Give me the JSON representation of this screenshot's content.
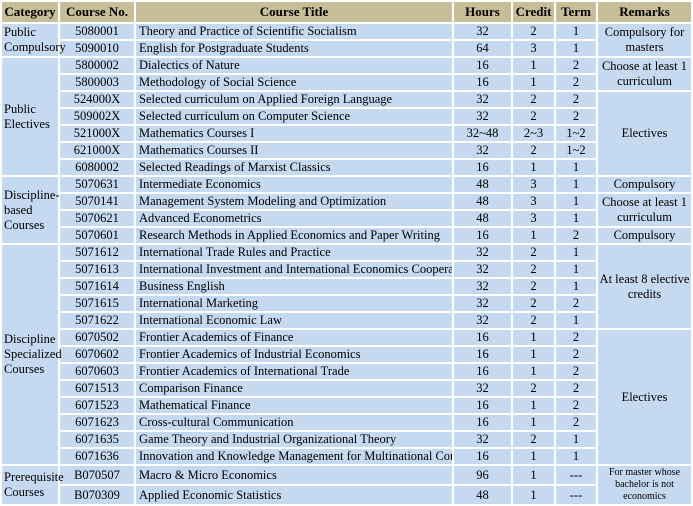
{
  "table": {
    "headers": [
      "Category",
      "Course No.",
      "Course Title",
      "Hours",
      "Credit",
      "Term",
      "Remarks"
    ],
    "rows": [
      {
        "no": "5080001",
        "title": "Theory and Practice of Scientific Socialism",
        "hours": "32",
        "credit": "2",
        "term": "1"
      },
      {
        "no": "5090010",
        "title": "English for Postgraduate Students",
        "hours": "64",
        "credit": "3",
        "term": "1"
      },
      {
        "no": "5800002",
        "title": "Dialectics of Nature",
        "hours": "16",
        "credit": "1",
        "term": "2"
      },
      {
        "no": "5800003",
        "title": "Methodology of Social Science",
        "hours": "16",
        "credit": "1",
        "term": "2"
      },
      {
        "no": "524000X",
        "title": "Selected curriculum on Applied Foreign Language",
        "hours": "32",
        "credit": "2",
        "term": "2"
      },
      {
        "no": "509002X",
        "title": "Selected curriculum on Computer Science",
        "hours": "32",
        "credit": "2",
        "term": "2"
      },
      {
        "no": "521000X",
        "title": "Mathematics Courses I",
        "hours": "32~48",
        "credit": "2~3",
        "term": "1~2"
      },
      {
        "no": "621000X",
        "title": "Mathematics Courses II",
        "hours": "32",
        "credit": "2",
        "term": "1~2"
      },
      {
        "no": "6080002",
        "title": "Selected Readings of Marxist Classics",
        "hours": "16",
        "credit": "1",
        "term": "1"
      },
      {
        "no": "5070631",
        "title": "Intermediate Economics",
        "hours": "48",
        "credit": "3",
        "term": "1"
      },
      {
        "no": "5070141",
        "title": "Management System Modeling and Optimization",
        "hours": "48",
        "credit": "3",
        "term": "1"
      },
      {
        "no": "5070621",
        "title": "Advanced Econometrics",
        "hours": "48",
        "credit": "3",
        "term": "1"
      },
      {
        "no": "5070601",
        "title": "Research Methods in Applied Economics and Paper Writing",
        "hours": "16",
        "credit": "1",
        "term": "2"
      },
      {
        "no": "5071612",
        "title": "International Trade Rules and Practice",
        "hours": "32",
        "credit": "2",
        "term": "1"
      },
      {
        "no": "5071613",
        "title": "International Investment and International Economics Cooperation",
        "hours": "32",
        "credit": "2",
        "term": "1"
      },
      {
        "no": "5071614",
        "title": "Business English",
        "hours": "32",
        "credit": "2",
        "term": "1"
      },
      {
        "no": "5071615",
        "title": "International Marketing",
        "hours": "32",
        "credit": "2",
        "term": "2"
      },
      {
        "no": "5071622",
        "title": "International Economic Law",
        "hours": "32",
        "credit": "2",
        "term": "1"
      },
      {
        "no": "6070502",
        "title": "Frontier Academics  of Finance",
        "hours": "16",
        "credit": "1",
        "term": "2"
      },
      {
        "no": "6070602",
        "title": "Frontier Academics  of Industrial Economics",
        "hours": "16",
        "credit": "1",
        "term": "2"
      },
      {
        "no": "6070603",
        "title": "Frontier Academics  of International Trade",
        "hours": "16",
        "credit": "1",
        "term": "2"
      },
      {
        "no": "6071513",
        "title": "Comparison Finance",
        "hours": "32",
        "credit": "2",
        "term": "2"
      },
      {
        "no": "6071523",
        "title": "Mathematical Finance",
        "hours": "16",
        "credit": "1",
        "term": "2"
      },
      {
        "no": "6071623",
        "title": "Cross-cultural Communication",
        "hours": "16",
        "credit": "1",
        "term": "2"
      },
      {
        "no": "6071635",
        "title": "Game Theory and Industrial Organizational Theory",
        "hours": "32",
        "credit": "2",
        "term": "1"
      },
      {
        "no": "6071636",
        "title": "Innovation and Knowledge Management for Multinational Corporation",
        "hours": "16",
        "credit": "1",
        "term": "1"
      },
      {
        "no": "B070507",
        "title": "Macro & Micro Economics",
        "hours": "96",
        "credit": "1",
        "term": "---"
      },
      {
        "no": "B070309",
        "title": "Applied Economic Statistics",
        "hours": "48",
        "credit": "1",
        "term": "---"
      }
    ],
    "category_groups": [
      {
        "label": "Public Compulsory",
        "start": 0,
        "span": 2
      },
      {
        "label": "Public Electives",
        "start": 2,
        "span": 7
      },
      {
        "label": "Discipline-based Courses",
        "start": 9,
        "span": 4
      },
      {
        "label": "Discipline Specialized Courses",
        "start": 13,
        "span": 13
      },
      {
        "label": "Prerequisite Courses",
        "start": 26,
        "span": 2
      }
    ],
    "remark_groups": [
      {
        "label": "Compulsory for masters",
        "start": 0,
        "span": 2,
        "small": false
      },
      {
        "label": "Choose at least 1 curriculum",
        "start": 2,
        "span": 2,
        "small": false
      },
      {
        "label": "Electives",
        "start": 4,
        "span": 5,
        "small": false
      },
      {
        "label": "Compulsory",
        "start": 9,
        "span": 1,
        "small": false
      },
      {
        "label": "Choose at least 1 curriculum",
        "start": 10,
        "span": 2,
        "small": false
      },
      {
        "label": "Compulsory",
        "start": 12,
        "span": 1,
        "small": false
      },
      {
        "label": "At least 8 elective credits",
        "start": 13,
        "span": 5,
        "small": false
      },
      {
        "label": "Electives",
        "start": 18,
        "span": 8,
        "small": false
      },
      {
        "label": "For master whose bachelor is not economics",
        "start": 26,
        "span": 2,
        "small": true
      }
    ],
    "colors": {
      "header_bg": "#c7bd96",
      "row_bg": "#c5d9f1",
      "grid": "#ffffff",
      "text": "#000000"
    }
  }
}
